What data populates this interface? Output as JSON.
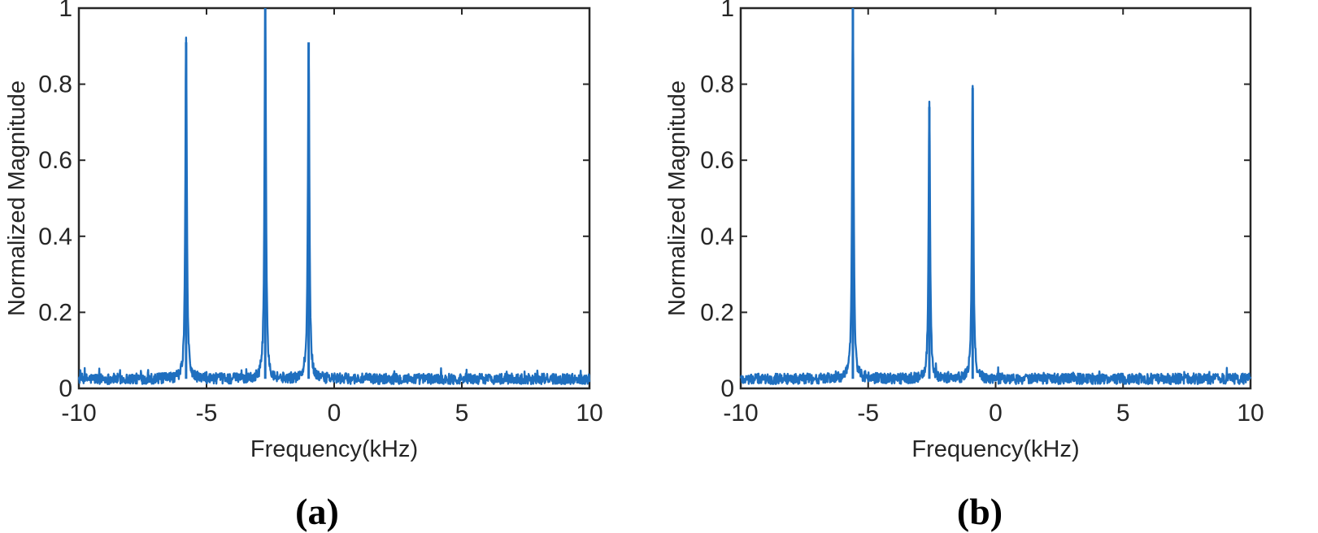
{
  "chart_data": [
    {
      "id": "a",
      "type": "line",
      "panel_label": "(a)",
      "xlabel": "Frequency(kHz)",
      "ylabel": "Normalized Magnitude",
      "xlim": [
        -10,
        10
      ],
      "ylim": [
        0,
        1
      ],
      "xticks": [
        -10,
        -5,
        0,
        5,
        10
      ],
      "xtick_labels": [
        "-10",
        "-5",
        "0",
        "5",
        "10"
      ],
      "yticks": [
        0,
        0.2,
        0.4,
        0.6,
        0.8,
        1
      ],
      "ytick_labels": [
        "0",
        "0.2",
        "0.4",
        "0.6",
        "0.8",
        "1"
      ],
      "grid": false,
      "color": "#1f6fbf",
      "noise_floor": 0.025,
      "series": [
        {
          "peaks": [
            {
              "x": -5.8,
              "y": 0.91
            },
            {
              "x": -2.7,
              "y": 1.0
            },
            {
              "x": -1.0,
              "y": 0.91
            }
          ]
        }
      ]
    },
    {
      "id": "b",
      "type": "line",
      "panel_label": "(b)",
      "xlabel": "Frequency(kHz)",
      "ylabel": "Normalized Magnitude",
      "xlim": [
        -10,
        10
      ],
      "ylim": [
        0,
        1
      ],
      "xticks": [
        -10,
        -5,
        0,
        5,
        10
      ],
      "xtick_labels": [
        "-10",
        "-5",
        "0",
        "5",
        "10"
      ],
      "yticks": [
        0,
        0.2,
        0.4,
        0.6,
        0.8,
        1
      ],
      "ytick_labels": [
        "0",
        "0.2",
        "0.4",
        "0.6",
        "0.8",
        "1"
      ],
      "grid": false,
      "color": "#1f6fbf",
      "noise_floor": 0.025,
      "series": [
        {
          "peaks": [
            {
              "x": -5.6,
              "y": 1.0
            },
            {
              "x": -2.6,
              "y": 0.74
            },
            {
              "x": -0.9,
              "y": 0.79
            }
          ]
        }
      ]
    }
  ]
}
